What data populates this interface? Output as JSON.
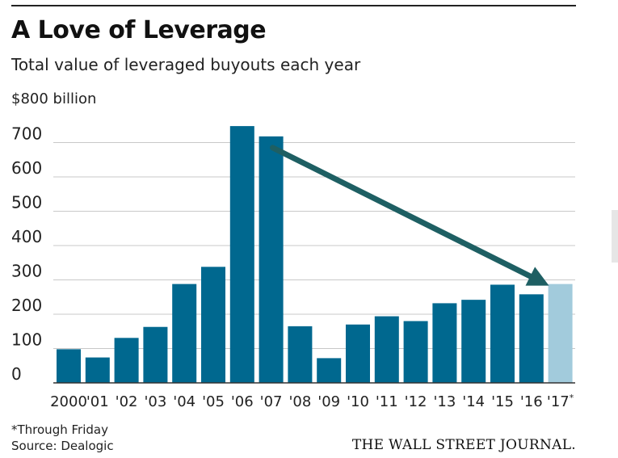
{
  "header": {
    "title": "A Love of Leverage",
    "subtitle": "Total value of leveraged buyouts each year"
  },
  "chart_data": {
    "type": "bar",
    "title": "A Love of Leverage",
    "subtitle": "Total value of leveraged buyouts each year",
    "unit_label": "$800 billion",
    "ylim": [
      0,
      800
    ],
    "yticks": [
      0,
      100,
      200,
      300,
      400,
      500,
      600,
      700
    ],
    "grid": true,
    "categories": [
      "2000",
      "'01",
      "'02",
      "'03",
      "'04",
      "'05",
      "'06",
      "'07",
      "'08",
      "'09",
      "'10",
      "'11",
      "'12",
      "'13",
      "'14",
      "'15",
      "'16",
      "'17"
    ],
    "last_label_suffix": "*",
    "values": [
      98,
      74,
      131,
      163,
      288,
      338,
      748,
      718,
      165,
      72,
      170,
      194,
      180,
      232,
      242,
      286,
      258,
      288
    ],
    "highlight_index": 17,
    "colors": {
      "bar": "#00688f",
      "highlight": "#a2cbdc",
      "arrow": "#1e5f63",
      "grid": "#c8c8c8"
    },
    "annotation": {
      "type": "arrow",
      "from_index": 7,
      "to_index": 17
    }
  },
  "footer": {
    "footnote": "*Through Friday",
    "source": "Source: Dealogic",
    "brand": "THE WALL STREET JOURNAL."
  }
}
